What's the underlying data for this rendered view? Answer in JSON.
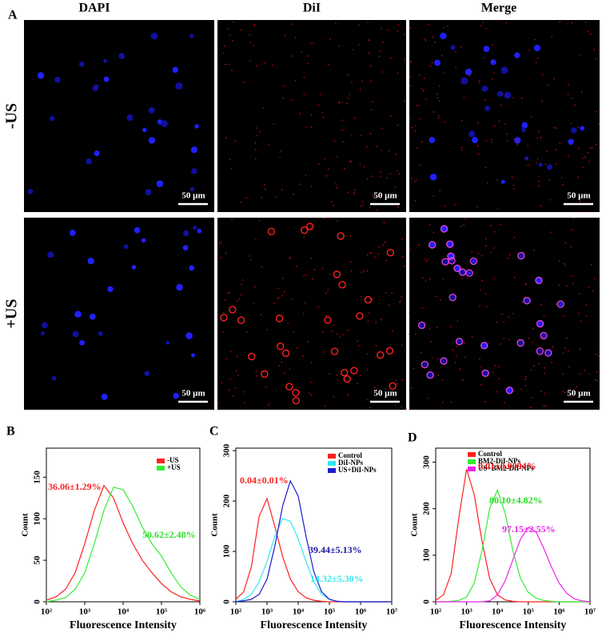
{
  "figure": {
    "panel_a": {
      "label": "A",
      "columns": [
        "DAPI",
        "DiI",
        "Merge"
      ],
      "rows": [
        "-US",
        "+US"
      ],
      "scale_bar": "50 µm"
    }
  },
  "chart_data": [
    {
      "type": "line",
      "panel_label": "B",
      "xlabel": "Fluorescence Intensity",
      "ylabel": "Count",
      "log_x": true,
      "xlim": [
        100,
        1000000
      ],
      "ylim": [
        0,
        185
      ],
      "xticks": [
        {
          "value": 100,
          "label": "10²"
        },
        {
          "value": 1000,
          "label": "10³"
        },
        {
          "value": 10000,
          "label": "10⁴"
        },
        {
          "value": 100000,
          "label": "10⁵"
        },
        {
          "value": 1000000,
          "label": "10⁶"
        }
      ],
      "yticks": [
        0,
        50,
        100,
        150
      ],
      "x": [
        100,
        178,
        316,
        562,
        1000,
        1778,
        3162,
        5623,
        10000,
        17783,
        31623,
        56234,
        100000,
        177828,
        316228,
        562341,
        1000000
      ],
      "series": [
        {
          "name": "-US",
          "color": "#ff2020",
          "values": [
            2,
            6,
            15,
            35,
            70,
            110,
            140,
            125,
            95,
            70,
            50,
            35,
            22,
            12,
            6,
            3,
            1
          ]
        },
        {
          "name": "+US",
          "color": "#33ee33",
          "values": [
            0,
            2,
            5,
            15,
            35,
            70,
            110,
            138,
            135,
            115,
            90,
            70,
            55,
            35,
            18,
            8,
            3
          ]
        }
      ],
      "annotations": [
        {
          "text": "36.06±1.29%",
          "color": "#ff2020"
        },
        {
          "text": "50.62±2.48%",
          "color": "#33dd33"
        }
      ]
    },
    {
      "type": "line",
      "panel_label": "C",
      "xlabel": "Fluorescence Intensity",
      "ylabel": "Count",
      "log_x": true,
      "xlim": [
        100,
        10000000
      ],
      "ylim": [
        0,
        305
      ],
      "xticks": [
        {
          "value": 100,
          "label": "10²"
        },
        {
          "value": 1000,
          "label": "10³"
        },
        {
          "value": 10000,
          "label": "10⁴"
        },
        {
          "value": 100000,
          "label": "10⁵"
        },
        {
          "value": 1000000,
          "label": "10⁶"
        },
        {
          "value": 10000000,
          "label": "10⁷"
        }
      ],
      "yticks": [
        0,
        100,
        200,
        300
      ],
      "x": [
        100,
        178,
        316,
        562,
        1000,
        1778,
        3162,
        5623,
        10000,
        17783,
        31623,
        56234,
        100000,
        177828,
        316228,
        562341,
        1000000,
        1778279,
        3162278,
        5623413,
        10000000
      ],
      "series": [
        {
          "name": "Control",
          "color": "#ff2020",
          "values": [
            5,
            20,
            70,
            170,
            205,
            150,
            90,
            45,
            20,
            8,
            3,
            1,
            0,
            0,
            0,
            0,
            0,
            0,
            0,
            0,
            0
          ]
        },
        {
          "name": "DiI-NPs",
          "color": "#33e6f0",
          "values": [
            0,
            5,
            15,
            40,
            80,
            130,
            165,
            160,
            125,
            80,
            40,
            15,
            5,
            1,
            0,
            0,
            0,
            0,
            0,
            0,
            0
          ]
        },
        {
          "name": "US+DiI-NPs",
          "color": "#1a1acc",
          "values": [
            0,
            2,
            5,
            15,
            45,
            110,
            190,
            240,
            210,
            130,
            60,
            20,
            5,
            1,
            0,
            0,
            0,
            0,
            0,
            0,
            0
          ]
        }
      ],
      "annotations": [
        {
          "text": "0.04±0.01%",
          "color": "#ff2020"
        },
        {
          "text": "39.44±5.13%",
          "color": "#1a1aa0"
        },
        {
          "text": "14.32±5.30%",
          "color": "#33e6f0"
        }
      ]
    },
    {
      "type": "line",
      "panel_label": "D",
      "xlabel": "Fluorescence Intensity",
      "ylabel": "Count",
      "log_x": true,
      "xlim": [
        100,
        10000000
      ],
      "ylim": [
        0,
        330
      ],
      "xticks": [
        {
          "value": 100,
          "label": "10²"
        },
        {
          "value": 1000,
          "label": "10³"
        },
        {
          "value": 10000,
          "label": "10⁴"
        },
        {
          "value": 100000,
          "label": "10⁵"
        },
        {
          "value": 1000000,
          "label": "10⁶"
        },
        {
          "value": 10000000,
          "label": "10⁷"
        }
      ],
      "yticks": [
        0,
        100,
        200,
        300
      ],
      "x": [
        100,
        178,
        316,
        562,
        1000,
        1778,
        3162,
        5623,
        10000,
        17783,
        31623,
        56234,
        100000,
        177828,
        316228,
        562341,
        1000000,
        1778279,
        3162278,
        5623413,
        10000000
      ],
      "series": [
        {
          "name": "Control",
          "color": "#ff2020",
          "values": [
            3,
            15,
            60,
            180,
            285,
            230,
            130,
            50,
            15,
            4,
            1,
            0,
            0,
            0,
            0,
            0,
            0,
            0,
            0,
            0,
            0
          ]
        },
        {
          "name": "BM2-DiI-NPs",
          "color": "#33ee33",
          "values": [
            0,
            0,
            1,
            3,
            10,
            40,
            110,
            200,
            240,
            190,
            110,
            50,
            20,
            8,
            3,
            1,
            0,
            0,
            0,
            0,
            0
          ]
        },
        {
          "name": "US+BM2-DiI-NPs",
          "color": "#ee22ee",
          "values": [
            0,
            0,
            0,
            0,
            0,
            0,
            0,
            2,
            15,
            45,
            90,
            135,
            160,
            150,
            115,
            75,
            40,
            18,
            6,
            2,
            0
          ]
        }
      ],
      "annotations": [
        {
          "text": "0.01±0.0094%",
          "color": "#ee1111"
        },
        {
          "text": "80.10±4.82%",
          "color": "#22dd22"
        },
        {
          "text": "97.15±2.55%",
          "color": "#ee22ee"
        }
      ]
    }
  ]
}
